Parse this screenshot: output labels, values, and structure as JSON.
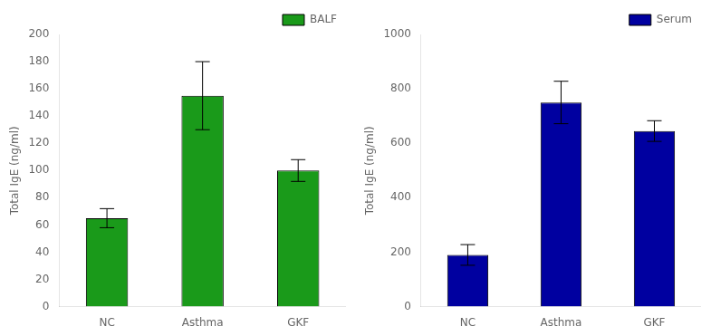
{
  "chart_data": [
    {
      "type": "bar",
      "categories": [
        "NC",
        "Asthma",
        "GKF"
      ],
      "series": [
        {
          "name": "BALF",
          "color": "#1a9a1a",
          "values": [
            65,
            155,
            100
          ],
          "errors": [
            7,
            25,
            8
          ]
        }
      ],
      "ylabel": "Total IgE (ng/ml)",
      "ylim": [
        0,
        200
      ],
      "yticks": [
        0,
        20,
        40,
        60,
        80,
        100,
        120,
        140,
        160,
        180,
        200
      ],
      "grid": false,
      "legend": "upper right"
    },
    {
      "type": "bar",
      "categories": [
        "NC",
        "Asthma",
        "GKF"
      ],
      "series": [
        {
          "name": "Serum",
          "color": "#0000a0",
          "values": [
            190,
            750,
            645
          ],
          "errors": [
            38,
            78,
            38
          ]
        }
      ],
      "ylabel": "Total IgE (ng/ml)",
      "ylim": [
        0,
        1000
      ],
      "yticks": [
        0,
        200,
        400,
        600,
        800,
        1000
      ],
      "grid": false,
      "legend": "upper right"
    }
  ]
}
